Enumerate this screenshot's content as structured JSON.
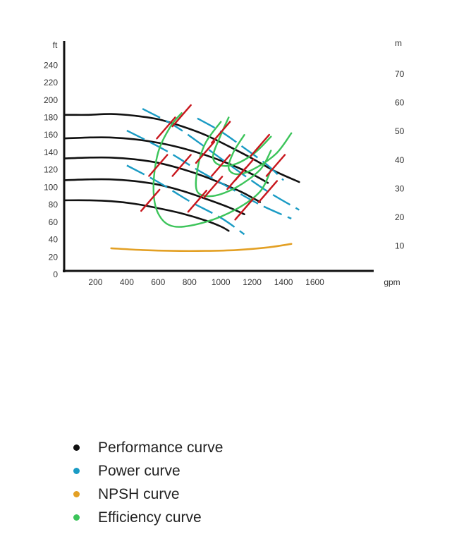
{
  "chart_data": {
    "type": "line",
    "title": "",
    "xlabel": "",
    "ylabel": "",
    "x_unit": "gpm",
    "y_unit_left": "ft",
    "y_unit_right": "m",
    "x_ticks": [
      200,
      400,
      600,
      800,
      1000,
      1200,
      1400,
      1600
    ],
    "y_ticks_left": [
      0,
      20,
      40,
      60,
      80,
      100,
      120,
      140,
      160,
      180,
      200,
      220,
      240
    ],
    "y_ticks_right": [
      10,
      20,
      30,
      40,
      50,
      60,
      70
    ],
    "xlim": [
      0,
      1950
    ],
    "ylim": [
      0,
      260
    ],
    "grid": false,
    "legend_position": "bottom-left",
    "colors": {
      "performance": "#111111",
      "power": "#1a9bc4",
      "npsh": "#e3a024",
      "efficiency": "#3cc45a",
      "cut": "#c8161d"
    },
    "performance_curves": [
      {
        "points": [
          [
            0,
            183
          ],
          [
            50,
            183
          ],
          [
            150,
            183
          ],
          [
            300,
            184
          ],
          [
            450,
            182
          ],
          [
            600,
            178
          ],
          [
            750,
            170
          ],
          [
            900,
            160
          ],
          [
            1050,
            147
          ],
          [
            1200,
            133
          ],
          [
            1350,
            118
          ],
          [
            1500,
            106
          ]
        ]
      },
      {
        "points": [
          [
            0,
            156
          ],
          [
            150,
            157
          ],
          [
            300,
            157
          ],
          [
            450,
            155
          ],
          [
            600,
            151
          ],
          [
            750,
            145
          ],
          [
            900,
            137
          ],
          [
            1050,
            127
          ],
          [
            1200,
            115
          ],
          [
            1300,
            105
          ]
        ]
      },
      {
        "points": [
          [
            0,
            133
          ],
          [
            150,
            134
          ],
          [
            300,
            134
          ],
          [
            450,
            132
          ],
          [
            600,
            128
          ],
          [
            750,
            121
          ],
          [
            900,
            112
          ],
          [
            1050,
            101
          ],
          [
            1150,
            93
          ],
          [
            1250,
            83
          ]
        ]
      },
      {
        "points": [
          [
            0,
            108
          ],
          [
            150,
            109
          ],
          [
            300,
            109
          ],
          [
            450,
            107
          ],
          [
            600,
            103
          ],
          [
            750,
            96
          ],
          [
            900,
            87
          ],
          [
            1050,
            77
          ],
          [
            1150,
            69
          ]
        ]
      },
      {
        "points": [
          [
            0,
            85
          ],
          [
            150,
            85
          ],
          [
            300,
            84
          ],
          [
            450,
            81
          ],
          [
            600,
            76
          ],
          [
            750,
            70
          ],
          [
            900,
            62
          ],
          [
            1000,
            55
          ],
          [
            1050,
            50
          ]
        ]
      }
    ],
    "power_curves": [
      {
        "points": [
          [
            500,
            190
          ],
          [
            700,
            171
          ],
          [
            900,
            146
          ],
          [
            1100,
            120
          ],
          [
            1300,
            95
          ],
          [
            1500,
            74
          ]
        ]
      },
      {
        "points": [
          [
            400,
            165
          ],
          [
            650,
            142
          ],
          [
            850,
            120
          ],
          [
            1050,
            100
          ],
          [
            1250,
            80
          ],
          [
            1450,
            64
          ]
        ]
      },
      {
        "points": [
          [
            400,
            125
          ],
          [
            600,
            106
          ],
          [
            800,
            84
          ],
          [
            1000,
            65
          ],
          [
            1150,
            46
          ]
        ]
      },
      {
        "points": [
          [
            850,
            179
          ],
          [
            1000,
            164
          ],
          [
            1150,
            145
          ],
          [
            1300,
            125
          ],
          [
            1400,
            108
          ]
        ]
      }
    ],
    "efficiency_curves": [
      {
        "points": [
          [
            1320,
            120
          ],
          [
            1250,
            95
          ],
          [
            1100,
            75
          ],
          [
            900,
            60
          ],
          [
            700,
            55
          ],
          [
            600,
            70
          ],
          [
            570,
            100
          ],
          [
            600,
            140
          ],
          [
            680,
            170
          ],
          [
            750,
            185
          ]
        ]
      },
      {
        "points": [
          [
            1320,
            142
          ],
          [
            1250,
            120
          ],
          [
            1100,
            100
          ],
          [
            950,
            90
          ],
          [
            850,
            95
          ],
          [
            850,
            120
          ],
          [
            900,
            150
          ],
          [
            1000,
            175
          ]
        ]
      },
      {
        "points": [
          [
            1320,
            158
          ],
          [
            1220,
            140
          ],
          [
            1100,
            127
          ],
          [
            1000,
            125
          ],
          [
            950,
            135
          ],
          [
            1000,
            160
          ],
          [
            1050,
            180
          ]
        ]
      },
      {
        "points": [
          [
            1450,
            162
          ],
          [
            1350,
            138
          ],
          [
            1200,
            120
          ],
          [
            1100,
            115
          ],
          [
            1050,
            122
          ],
          [
            1080,
            140
          ],
          [
            1150,
            160
          ]
        ]
      }
    ],
    "npsh_curve": {
      "points": [
        [
          300,
          30
        ],
        [
          500,
          28
        ],
        [
          700,
          27
        ],
        [
          900,
          27
        ],
        [
          1100,
          28
        ],
        [
          1300,
          31
        ],
        [
          1450,
          35
        ]
      ]
    },
    "cut_marks": [
      {
        "x": 650,
        "y": 168
      },
      {
        "x": 750,
        "y": 182
      },
      {
        "x": 1000,
        "y": 163
      },
      {
        "x": 1250,
        "y": 148
      },
      {
        "x": 600,
        "y": 125
      },
      {
        "x": 750,
        "y": 125
      },
      {
        "x": 900,
        "y": 140
      },
      {
        "x": 1000,
        "y": 125
      },
      {
        "x": 1150,
        "y": 120
      },
      {
        "x": 1350,
        "y": 125
      },
      {
        "x": 550,
        "y": 85
      },
      {
        "x": 850,
        "y": 84
      },
      {
        "x": 950,
        "y": 100
      },
      {
        "x": 1150,
        "y": 75
      },
      {
        "x": 1100,
        "y": 110
      },
      {
        "x": 1300,
        "y": 95
      }
    ]
  },
  "legend": {
    "items": [
      {
        "label": "Performance curve",
        "color": "#111111"
      },
      {
        "label": "Power curve",
        "color": "#1a9bc4"
      },
      {
        "label": "NPSH curve",
        "color": "#e3a024"
      },
      {
        "label": "Efficiency curve",
        "color": "#3cc45a"
      }
    ]
  }
}
